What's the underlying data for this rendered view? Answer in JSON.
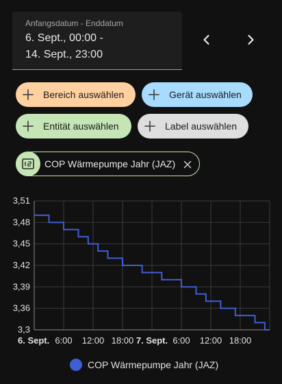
{
  "date_picker": {
    "label": "Anfangsdatum - Enddatum",
    "start": "6. Sept., 00:00 -",
    "end": "14. Sept., 23:00"
  },
  "chips": {
    "area": "Bereich auswählen",
    "device": "Gerät auswählen",
    "entity": "Entität auswählen",
    "label": "Label auswählen"
  },
  "selected_entity": {
    "name": "COP Wärmepumpe Jahr (JAZ)",
    "icon": "counter-icon"
  },
  "colors": {
    "area": "#ffd0a0",
    "device": "#a8dcff",
    "entity": "#c5e5b6",
    "label": "#dedede",
    "series": "#3e5ed6",
    "background": "#111111"
  },
  "chart_data": {
    "type": "line",
    "step": true,
    "title": "",
    "xlabel": "",
    "ylabel": "",
    "ylim": [
      3.3,
      3.51
    ],
    "y_ticks": [
      "3,51",
      "3,48",
      "3,45",
      "3,42",
      "3,39",
      "3,36",
      "3,3"
    ],
    "x_ticks": [
      {
        "label": "6. Sept.",
        "bold": true
      },
      {
        "label": "6:00",
        "bold": false
      },
      {
        "label": "12:00",
        "bold": false
      },
      {
        "label": "18:00",
        "bold": false
      },
      {
        "label": "7. Sept.",
        "bold": true
      },
      {
        "label": "6:00",
        "bold": false
      },
      {
        "label": "12:00",
        "bold": false
      },
      {
        "label": "18:00",
        "bold": false
      }
    ],
    "grid": true,
    "legend": "bottom",
    "series": [
      {
        "name": "COP Wärmepumpe Jahr (JAZ)",
        "x_hours": [
          0,
          3,
          6,
          9,
          11,
          13,
          15,
          18,
          20,
          22,
          26,
          28,
          30,
          33,
          35,
          38,
          41,
          42,
          45,
          47
        ],
        "values": [
          3.49,
          3.48,
          3.47,
          3.46,
          3.45,
          3.44,
          3.43,
          3.42,
          3.42,
          3.41,
          3.4,
          3.4,
          3.39,
          3.38,
          3.37,
          3.36,
          3.35,
          3.35,
          3.34,
          3.33
        ]
      }
    ],
    "x_range_hours": [
      0,
      48
    ]
  }
}
